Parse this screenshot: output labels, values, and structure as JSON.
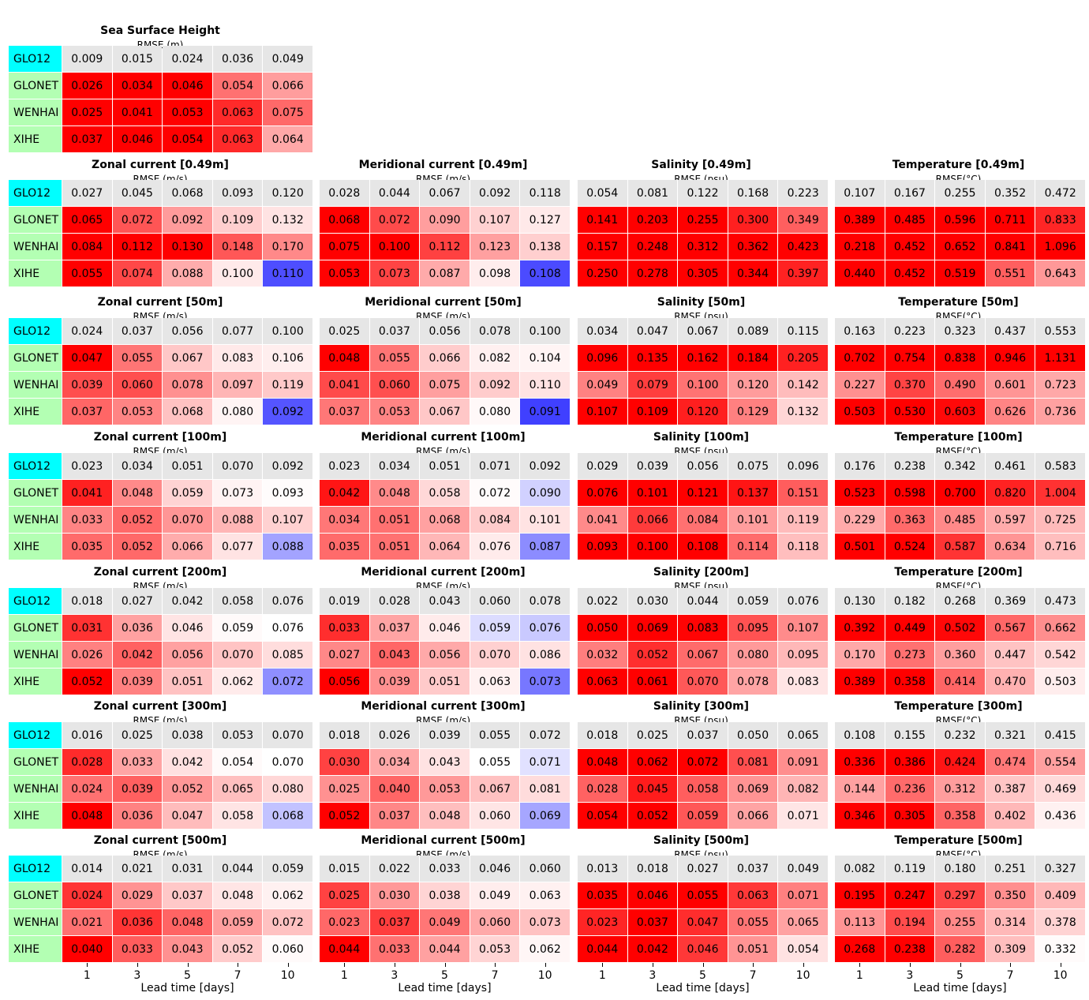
{
  "chart_data": {
    "type": "table",
    "xlabel": "Lead time [days]",
    "x_ticks": [
      "1",
      "3",
      "5",
      "7",
      "10"
    ],
    "models": [
      "GLO12",
      "GLONET",
      "WENHAI",
      "XIHE"
    ],
    "colors": {
      "reference": "#00ffff",
      "model_label": "#b3ffb3",
      "baseline_row": "#e6e6e6",
      "worse": "#ff0000",
      "better": "#0000ff"
    },
    "panels": [
      {
        "title": "Sea Surface Height",
        "subtitle": "RMSE (m)",
        "rows": [
          [
            0.009,
            0.015,
            0.024,
            0.036,
            0.049
          ],
          [
            0.026,
            0.034,
            0.046,
            0.054,
            0.066
          ],
          [
            0.025,
            0.041,
            0.053,
            0.063,
            0.075
          ],
          [
            0.037,
            0.046,
            0.054,
            0.063,
            0.064
          ]
        ]
      },
      {
        "title": "Zonal current [0.49m]",
        "subtitle": "RMSE (m/s)",
        "rows": [
          [
            0.027,
            0.045,
            0.068,
            0.093,
            0.12
          ],
          [
            0.065,
            0.072,
            0.092,
            0.109,
            0.132
          ],
          [
            0.084,
            0.112,
            0.13,
            0.148,
            0.17
          ],
          [
            0.055,
            0.074,
            0.088,
            0.1,
            0.11
          ]
        ]
      },
      {
        "title": "Meridional current [0.49m]",
        "subtitle": "RMSE (m/s)",
        "rows": [
          [
            0.028,
            0.044,
            0.067,
            0.092,
            0.118
          ],
          [
            0.068,
            0.072,
            0.09,
            0.107,
            0.127
          ],
          [
            0.075,
            0.1,
            0.112,
            0.123,
            0.138
          ],
          [
            0.053,
            0.073,
            0.087,
            0.098,
            0.108
          ]
        ]
      },
      {
        "title": "Salinity [0.49m]",
        "subtitle": "RMSE (psu)",
        "rows": [
          [
            0.054,
            0.081,
            0.122,
            0.168,
            0.223
          ],
          [
            0.141,
            0.203,
            0.255,
            0.3,
            0.349
          ],
          [
            0.157,
            0.248,
            0.312,
            0.362,
            0.423
          ],
          [
            0.25,
            0.278,
            0.305,
            0.344,
            0.397
          ]
        ]
      },
      {
        "title": "Temperature [0.49m]",
        "subtitle": "RMSE(°C)",
        "rows": [
          [
            0.107,
            0.167,
            0.255,
            0.352,
            0.472
          ],
          [
            0.389,
            0.485,
            0.596,
            0.711,
            0.833
          ],
          [
            0.218,
            0.452,
            0.652,
            0.841,
            1.096
          ],
          [
            0.44,
            0.452,
            0.519,
            0.551,
            0.643
          ]
        ]
      },
      {
        "title": "Zonal current [50m]",
        "subtitle": "RMSE (m/s)",
        "rows": [
          [
            0.024,
            0.037,
            0.056,
            0.077,
            0.1
          ],
          [
            0.047,
            0.055,
            0.067,
            0.083,
            0.106
          ],
          [
            0.039,
            0.06,
            0.078,
            0.097,
            0.119
          ],
          [
            0.037,
            0.053,
            0.068,
            0.08,
            0.092
          ]
        ]
      },
      {
        "title": "Meridional current [50m]",
        "subtitle": "RMSE (m/s)",
        "rows": [
          [
            0.025,
            0.037,
            0.056,
            0.078,
            0.1
          ],
          [
            0.048,
            0.055,
            0.066,
            0.082,
            0.104
          ],
          [
            0.041,
            0.06,
            0.075,
            0.092,
            0.11
          ],
          [
            0.037,
            0.053,
            0.067,
            0.08,
            0.091
          ]
        ]
      },
      {
        "title": "Salinity [50m]",
        "subtitle": "RMSE (psu)",
        "rows": [
          [
            0.034,
            0.047,
            0.067,
            0.089,
            0.115
          ],
          [
            0.096,
            0.135,
            0.162,
            0.184,
            0.205
          ],
          [
            0.049,
            0.079,
            0.1,
            0.12,
            0.142
          ],
          [
            0.107,
            0.109,
            0.12,
            0.129,
            0.132
          ]
        ]
      },
      {
        "title": "Temperature [50m]",
        "subtitle": "RMSE(°C)",
        "rows": [
          [
            0.163,
            0.223,
            0.323,
            0.437,
            0.553
          ],
          [
            0.702,
            0.754,
            0.838,
            0.946,
            1.131
          ],
          [
            0.227,
            0.37,
            0.49,
            0.601,
            0.723
          ],
          [
            0.503,
            0.53,
            0.603,
            0.626,
            0.736
          ]
        ]
      },
      {
        "title": "Zonal current [100m]",
        "subtitle": "RMSE (m/s)",
        "rows": [
          [
            0.023,
            0.034,
            0.051,
            0.07,
            0.092
          ],
          [
            0.041,
            0.048,
            0.059,
            0.073,
            0.093
          ],
          [
            0.033,
            0.052,
            0.07,
            0.088,
            0.107
          ],
          [
            0.035,
            0.052,
            0.066,
            0.077,
            0.088
          ]
        ]
      },
      {
        "title": "Meridional current [100m]",
        "subtitle": "RMSE (m/s)",
        "rows": [
          [
            0.023,
            0.034,
            0.051,
            0.071,
            0.092
          ],
          [
            0.042,
            0.048,
            0.058,
            0.072,
            0.09
          ],
          [
            0.034,
            0.051,
            0.068,
            0.084,
            0.101
          ],
          [
            0.035,
            0.051,
            0.064,
            0.076,
            0.087
          ]
        ]
      },
      {
        "title": "Salinity [100m]",
        "subtitle": "RMSE (psu)",
        "rows": [
          [
            0.029,
            0.039,
            0.056,
            0.075,
            0.096
          ],
          [
            0.076,
            0.101,
            0.121,
            0.137,
            0.151
          ],
          [
            0.041,
            0.066,
            0.084,
            0.101,
            0.119
          ],
          [
            0.093,
            0.1,
            0.108,
            0.114,
            0.118
          ]
        ]
      },
      {
        "title": "Temperature [100m]",
        "subtitle": "RMSE(°C)",
        "rows": [
          [
            0.176,
            0.238,
            0.342,
            0.461,
            0.583
          ],
          [
            0.523,
            0.598,
            0.7,
            0.82,
            1.004
          ],
          [
            0.229,
            0.363,
            0.485,
            0.597,
            0.725
          ],
          [
            0.501,
            0.524,
            0.587,
            0.634,
            0.716
          ]
        ]
      },
      {
        "title": "Zonal current [200m]",
        "subtitle": "RMSE (m/s)",
        "rows": [
          [
            0.018,
            0.027,
            0.042,
            0.058,
            0.076
          ],
          [
            0.031,
            0.036,
            0.046,
            0.059,
            0.076
          ],
          [
            0.026,
            0.042,
            0.056,
            0.07,
            0.085
          ],
          [
            0.052,
            0.039,
            0.051,
            0.062,
            0.072
          ]
        ]
      },
      {
        "title": "Meridional current [200m]",
        "subtitle": "RMSE (m/s)",
        "rows": [
          [
            0.019,
            0.028,
            0.043,
            0.06,
            0.078
          ],
          [
            0.033,
            0.037,
            0.046,
            0.059,
            0.076
          ],
          [
            0.027,
            0.043,
            0.056,
            0.07,
            0.086
          ],
          [
            0.056,
            0.039,
            0.051,
            0.063,
            0.073
          ]
        ]
      },
      {
        "title": "Salinity [200m]",
        "subtitle": "RMSE (psu)",
        "rows": [
          [
            0.022,
            0.03,
            0.044,
            0.059,
            0.076
          ],
          [
            0.05,
            0.069,
            0.083,
            0.095,
            0.107
          ],
          [
            0.032,
            0.052,
            0.067,
            0.08,
            0.095
          ],
          [
            0.063,
            0.061,
            0.07,
            0.078,
            0.083
          ]
        ]
      },
      {
        "title": "Temperature [200m]",
        "subtitle": "RMSE(°C)",
        "rows": [
          [
            0.13,
            0.182,
            0.268,
            0.369,
            0.473
          ],
          [
            0.392,
            0.449,
            0.502,
            0.567,
            0.662
          ],
          [
            0.17,
            0.273,
            0.36,
            0.447,
            0.542
          ],
          [
            0.389,
            0.358,
            0.414,
            0.47,
            0.503
          ]
        ]
      },
      {
        "title": "Zonal current [300m]",
        "subtitle": "RMSE (m/s)",
        "rows": [
          [
            0.016,
            0.025,
            0.038,
            0.053,
            0.07
          ],
          [
            0.028,
            0.033,
            0.042,
            0.054,
            0.07
          ],
          [
            0.024,
            0.039,
            0.052,
            0.065,
            0.08
          ],
          [
            0.048,
            0.036,
            0.047,
            0.058,
            0.068
          ]
        ]
      },
      {
        "title": "Meridional current [300m]",
        "subtitle": "RMSE (m/s)",
        "rows": [
          [
            0.018,
            0.026,
            0.039,
            0.055,
            0.072
          ],
          [
            0.03,
            0.034,
            0.043,
            0.055,
            0.071
          ],
          [
            0.025,
            0.04,
            0.053,
            0.067,
            0.081
          ],
          [
            0.052,
            0.037,
            0.048,
            0.06,
            0.069
          ]
        ]
      },
      {
        "title": "Salinity [300m]",
        "subtitle": "RMSE (psu)",
        "rows": [
          [
            0.018,
            0.025,
            0.037,
            0.05,
            0.065
          ],
          [
            0.048,
            0.062,
            0.072,
            0.081,
            0.091
          ],
          [
            0.028,
            0.045,
            0.058,
            0.069,
            0.082
          ],
          [
            0.054,
            0.052,
            0.059,
            0.066,
            0.071
          ]
        ]
      },
      {
        "title": "Temperature [300m]",
        "subtitle": "RMSE(°C)",
        "rows": [
          [
            0.108,
            0.155,
            0.232,
            0.321,
            0.415
          ],
          [
            0.336,
            0.386,
            0.424,
            0.474,
            0.554
          ],
          [
            0.144,
            0.236,
            0.312,
            0.387,
            0.469
          ],
          [
            0.346,
            0.305,
            0.358,
            0.402,
            0.436
          ]
        ]
      },
      {
        "title": "Zonal current [500m]",
        "subtitle": "RMSE (m/s)",
        "rows": [
          [
            0.014,
            0.021,
            0.031,
            0.044,
            0.059
          ],
          [
            0.024,
            0.029,
            0.037,
            0.048,
            0.062
          ],
          [
            0.021,
            0.036,
            0.048,
            0.059,
            0.072
          ],
          [
            0.04,
            0.033,
            0.043,
            0.052,
            0.06
          ]
        ]
      },
      {
        "title": "Meridional current [500m]",
        "subtitle": "RMSE (m/s)",
        "rows": [
          [
            0.015,
            0.022,
            0.033,
            0.046,
            0.06
          ],
          [
            0.025,
            0.03,
            0.038,
            0.049,
            0.063
          ],
          [
            0.023,
            0.037,
            0.049,
            0.06,
            0.073
          ],
          [
            0.044,
            0.033,
            0.044,
            0.053,
            0.062
          ]
        ]
      },
      {
        "title": "Salinity [500m]",
        "subtitle": "RMSE (psu)",
        "rows": [
          [
            0.013,
            0.018,
            0.027,
            0.037,
            0.049
          ],
          [
            0.035,
            0.046,
            0.055,
            0.063,
            0.071
          ],
          [
            0.023,
            0.037,
            0.047,
            0.055,
            0.065
          ],
          [
            0.044,
            0.042,
            0.046,
            0.051,
            0.054
          ]
        ]
      },
      {
        "title": "Temperature [500m]",
        "subtitle": "RMSE(°C)",
        "rows": [
          [
            0.082,
            0.119,
            0.18,
            0.251,
            0.327
          ],
          [
            0.195,
            0.247,
            0.297,
            0.35,
            0.409
          ],
          [
            0.113,
            0.194,
            0.255,
            0.314,
            0.378
          ],
          [
            0.268,
            0.238,
            0.282,
            0.309,
            0.332
          ]
        ]
      }
    ]
  }
}
